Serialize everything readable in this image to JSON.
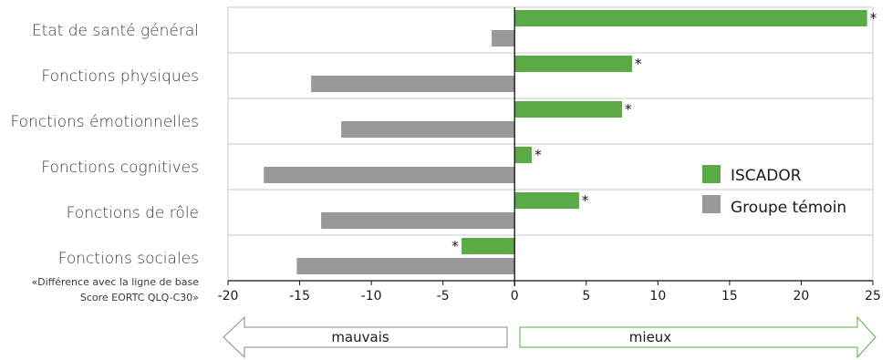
{
  "chart_data": {
    "type": "bar",
    "orientation": "horizontal",
    "categories": [
      "Etat de santé général",
      "Fonctions physiques",
      "Fonctions émotionnelles",
      "Fonctions cognitives",
      "Fonctions de rôle",
      "Fonctions sociales"
    ],
    "series": [
      {
        "name": "ISCADOR",
        "color": "#5aab46",
        "values": [
          24.6,
          8.2,
          7.5,
          1.2,
          4.5,
          -3.7
        ],
        "significant": [
          true,
          true,
          true,
          true,
          true,
          true
        ]
      },
      {
        "name": "Groupe témoin",
        "color": "#999999",
        "values": [
          -1.6,
          -14.2,
          -12.1,
          -17.5,
          -13.5,
          -15.2
        ],
        "significant": [
          false,
          false,
          false,
          false,
          false,
          false
        ]
      }
    ],
    "xlim": [
      -20,
      25
    ],
    "xticks": [
      "-20",
      "-15",
      "-10",
      "-5",
      "0",
      "5",
      "10",
      "15",
      "20",
      "25"
    ],
    "significance_marker": "*",
    "axis_note_line1": "«Différence avec la ligne de base",
    "axis_note_line2": "Score EORTC QLQ-C30»",
    "legend_position": "right",
    "grid": "horizontal lines between categories",
    "arrows": {
      "left_label": "mauvais",
      "right_label": "mieux",
      "left_color": "#8a8a8a",
      "right_color": "#5aab46"
    }
  }
}
